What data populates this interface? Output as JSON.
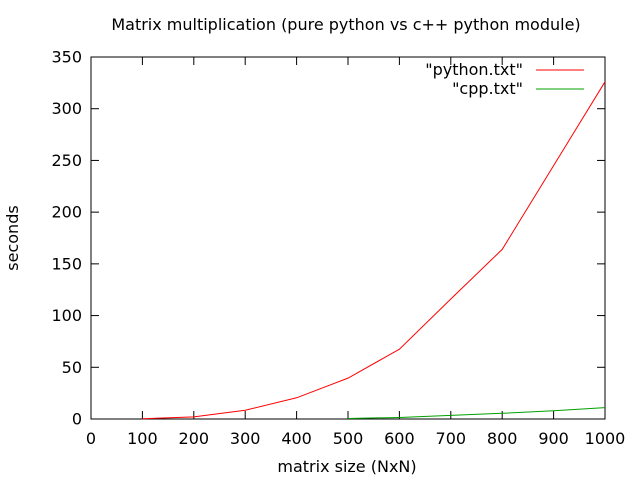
{
  "chart_data": {
    "type": "line",
    "title": "Matrix multiplication (pure python vs c++ python module)",
    "xlabel": "matrix size (NxN)",
    "ylabel": "seconds",
    "xlim": [
      0,
      1000
    ],
    "ylim": [
      0,
      350
    ],
    "xticks": [
      0,
      100,
      200,
      300,
      400,
      500,
      600,
      700,
      800,
      900,
      1000
    ],
    "yticks": [
      0,
      50,
      100,
      150,
      200,
      250,
      300,
      350
    ],
    "grid": false,
    "legend_position": "top-right",
    "series": [
      {
        "name": "\"python.txt\"",
        "color": "#ff0000",
        "x": [
          100,
          200,
          300,
          400,
          500,
          600,
          700,
          800,
          900,
          1000
        ],
        "y": [
          0.3,
          2,
          8.5,
          20.5,
          39.5,
          67.5,
          116,
          164,
          245,
          326
        ]
      },
      {
        "name": "\"cpp.txt\"",
        "color": "#00a000",
        "x": [
          500,
          600,
          700,
          800,
          900,
          1000
        ],
        "y": [
          0.5,
          1.5,
          3.5,
          5.5,
          8,
          11
        ]
      }
    ]
  }
}
